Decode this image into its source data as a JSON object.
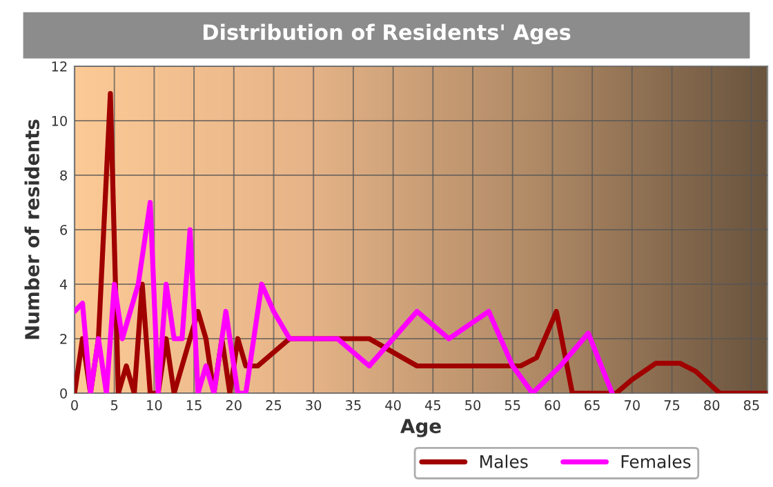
{
  "chart_data": {
    "type": "line",
    "title": "Distribution of Residents' Ages",
    "xlabel": "Age",
    "ylabel": "Number of residents",
    "series": [
      {
        "name": "Males",
        "color": "#a00000",
        "x": [
          0,
          1,
          2,
          3,
          4.5,
          5.5,
          6.5,
          7.5,
          8.5,
          9.5,
          10.5,
          11.5,
          12.5,
          13.5,
          14.5,
          15.5,
          16.5,
          17.5,
          18.5,
          19.5,
          20.5,
          21.5,
          23,
          25,
          27,
          30,
          33,
          37,
          40,
          43,
          46,
          50,
          54,
          56,
          58,
          60.5,
          62.5,
          65,
          68,
          70,
          73,
          76,
          78,
          81,
          84,
          87
        ],
        "values": [
          0,
          2,
          0,
          2,
          11,
          0,
          1,
          0,
          4,
          0,
          0,
          2,
          0,
          1,
          2,
          3,
          2,
          0,
          2,
          0,
          2,
          1,
          1,
          1.5,
          2,
          2,
          2,
          2,
          1.5,
          1,
          1,
          1,
          1,
          1,
          1.3,
          3,
          0,
          0,
          0,
          0.5,
          1.1,
          1.1,
          0.8,
          0,
          0,
          0
        ]
      },
      {
        "name": "Females",
        "color": "#ff00ff",
        "x": [
          0,
          1,
          2,
          3,
          4,
          5,
          6,
          7,
          8,
          9.5,
          10.5,
          11.5,
          12.5,
          13.5,
          14.5,
          15.5,
          16.5,
          17.5,
          19,
          20.5,
          21.5,
          22.5,
          23.5,
          25,
          27,
          30,
          33,
          37,
          40,
          43,
          47,
          52,
          55,
          57.5,
          61,
          64.5,
          67.5
        ],
        "values": [
          3,
          3.3,
          0,
          2,
          0,
          4,
          2,
          3,
          4,
          7,
          0,
          4,
          2,
          2,
          6,
          0,
          1,
          0,
          3,
          0,
          0,
          2,
          4,
          3,
          2,
          2,
          2,
          1,
          2,
          3,
          2,
          3,
          1,
          0,
          1,
          2.2,
          0
        ]
      }
    ],
    "xlim": [
      0,
      87
    ],
    "ylim": [
      0,
      12
    ],
    "xticks": [
      0,
      5,
      10,
      15,
      20,
      25,
      30,
      35,
      40,
      45,
      50,
      55,
      60,
      65,
      70,
      75,
      80,
      85
    ],
    "yticks": [
      0,
      2,
      4,
      6,
      8,
      10,
      12
    ],
    "grid": true,
    "legend": "bottom",
    "line_style": "solid",
    "marker": "none"
  }
}
